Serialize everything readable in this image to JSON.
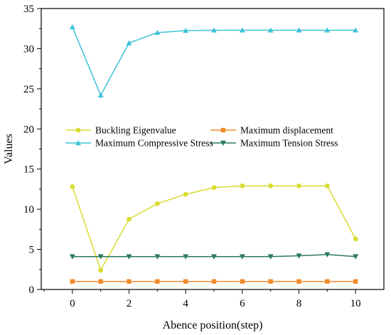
{
  "chart_data": {
    "type": "line",
    "xlabel": "Abence position(step)",
    "ylabel": "Values",
    "xlim": [
      -1.1,
      11.0
    ],
    "ylim": [
      0,
      35
    ],
    "xticks": [
      0,
      2,
      4,
      6,
      8,
      10
    ],
    "yticks": [
      0,
      5,
      10,
      15,
      20,
      25,
      30,
      35
    ],
    "x": [
      0,
      1,
      2,
      3,
      4,
      5,
      6,
      7,
      8,
      9,
      10
    ],
    "grid": false,
    "legend_position": "center-left",
    "series": [
      {
        "name": "Buckling Eigenvalue",
        "color": "#d8dc33",
        "marker": "circle",
        "values": [
          12.8,
          2.4,
          8.75,
          10.7,
          11.85,
          12.7,
          12.9,
          12.9,
          12.9,
          12.9,
          6.3
        ]
      },
      {
        "name": "Maximum displacement",
        "color": "#f28a2c",
        "marker": "square",
        "values": [
          1.0,
          1.0,
          1.0,
          1.0,
          1.0,
          1.0,
          1.0,
          1.0,
          1.0,
          1.0,
          1.0
        ]
      },
      {
        "name": "Maximum Compressive Stress",
        "color": "#3ec3d8",
        "marker": "triangle-up",
        "values": [
          32.7,
          24.2,
          30.7,
          32.0,
          32.25,
          32.3,
          32.3,
          32.3,
          32.3,
          32.3,
          32.3
        ]
      },
      {
        "name": "Maximum Tension Stress",
        "color": "#2b7a5a",
        "marker": "triangle-down",
        "values": [
          4.1,
          4.1,
          4.1,
          4.1,
          4.1,
          4.1,
          4.1,
          4.1,
          4.2,
          4.35,
          4.1
        ]
      }
    ]
  }
}
